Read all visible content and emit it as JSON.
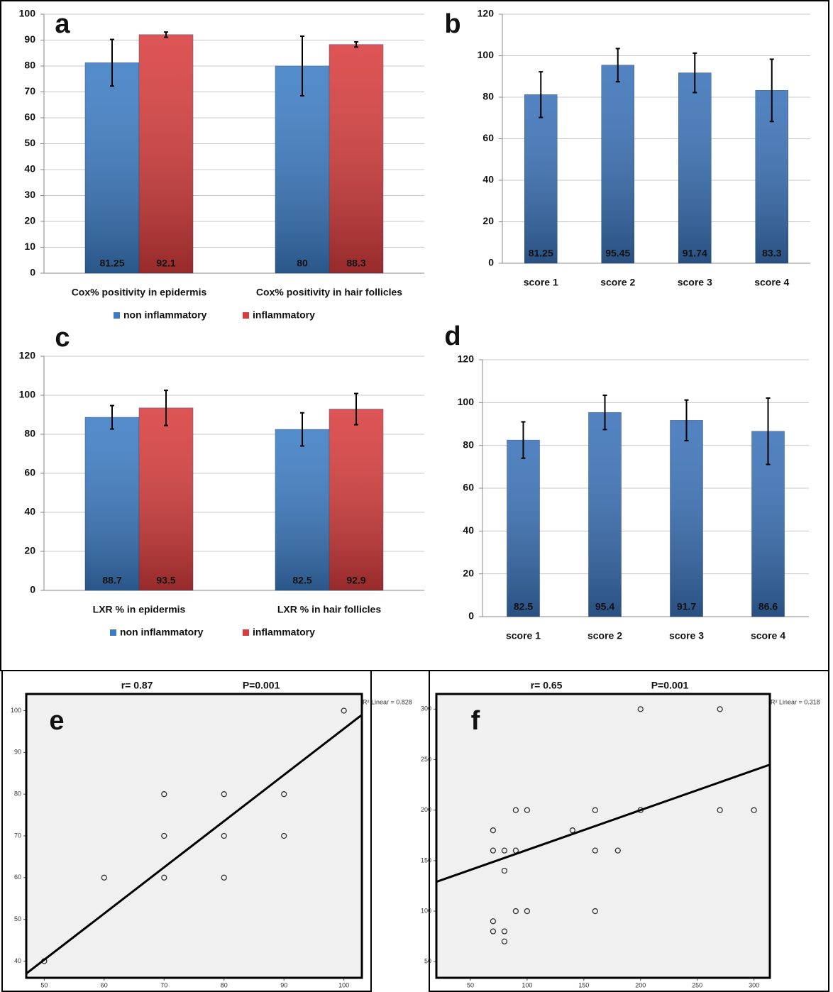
{
  "chart_data": [
    {
      "type": "bar",
      "label": "a",
      "categories": [
        "Cox% positivity in epidermis",
        "Cox% positivity in hair follicles"
      ],
      "series": [
        {
          "name": "non inflammatory",
          "color": "#3c7cc4",
          "values": [
            81.25,
            80
          ],
          "errors": [
            9,
            11.5
          ]
        },
        {
          "name": "inflammatory",
          "color": "#d83c3c",
          "values": [
            92.1,
            88.3
          ],
          "errors": [
            1,
            1
          ]
        }
      ],
      "ylim": [
        0,
        100
      ],
      "yticks": [
        0,
        10,
        20,
        30,
        40,
        50,
        60,
        70,
        80,
        90,
        100
      ],
      "grid": true
    },
    {
      "type": "bar",
      "label": "b",
      "categories": [
        "score 1",
        "score 2",
        "score 3",
        "score 4"
      ],
      "series": [
        {
          "name": null,
          "color": "#3a72b8",
          "values": [
            81.25,
            95.45,
            91.74,
            83.3
          ],
          "errors": [
            11,
            8,
            9.5,
            15
          ]
        }
      ],
      "ylim": [
        0,
        120
      ],
      "yticks": [
        0,
        20,
        40,
        60,
        80,
        100,
        120
      ],
      "grid": true
    },
    {
      "type": "bar",
      "label": "c",
      "categories": [
        "LXR % in epidermis",
        "LXR % in hair follicles"
      ],
      "series": [
        {
          "name": "non inflammatory",
          "color": "#3c7cc4",
          "values": [
            88.7,
            82.5
          ],
          "errors": [
            6,
            8.5
          ]
        },
        {
          "name": "inflammatory",
          "color": "#d83c3c",
          "values": [
            93.5,
            92.9
          ],
          "errors": [
            9,
            8
          ]
        }
      ],
      "ylim": [
        0,
        120
      ],
      "yticks": [
        0,
        20,
        40,
        60,
        80,
        100,
        120
      ],
      "grid": true
    },
    {
      "type": "bar",
      "label": "d",
      "categories": [
        "score 1",
        "score 2",
        "score 3",
        "score 4"
      ],
      "series": [
        {
          "name": null,
          "color": "#3a72b8",
          "values": [
            82.5,
            95.4,
            91.7,
            86.6
          ],
          "errors": [
            8.5,
            8,
            9.5,
            15.5
          ]
        }
      ],
      "ylim": [
        0,
        120
      ],
      "yticks": [
        0,
        20,
        40,
        60,
        80,
        100,
        120
      ],
      "grid": true
    },
    {
      "type": "scatter",
      "label": "e",
      "annotations": [
        "r= 0.87",
        "P=0.001",
        "R² Linear = 0.828"
      ],
      "x": [
        50,
        60,
        70,
        70,
        70,
        80,
        80,
        80,
        90,
        90,
        100
      ],
      "y": [
        40,
        60,
        80,
        70,
        60,
        80,
        70,
        60,
        80,
        70,
        100
      ],
      "fit": {
        "x": [
          47,
          103
        ],
        "y": [
          37,
          99
        ]
      },
      "xlim": [
        47,
        103
      ],
      "xticks": [
        50,
        60,
        70,
        80,
        90,
        100
      ],
      "ylim": [
        36,
        104
      ],
      "yticks": [
        40,
        50,
        60,
        70,
        80,
        90,
        100
      ]
    },
    {
      "type": "scatter",
      "label": "f",
      "annotations": [
        "r= 0.65",
        "P=0.001",
        "R² Linear = 0.318"
      ],
      "x": [
        70,
        70,
        70,
        70,
        80,
        80,
        80,
        80,
        90,
        90,
        90,
        100,
        100,
        140,
        160,
        160,
        160,
        180,
        200,
        200,
        270,
        270,
        300
      ],
      "y": [
        180,
        160,
        90,
        80,
        160,
        140,
        80,
        70,
        200,
        160,
        100,
        200,
        100,
        180,
        200,
        160,
        100,
        160,
        300,
        200,
        300,
        200,
        200
      ],
      "fit": {
        "x": [
          20,
          314
        ],
        "y": [
          129,
          245
        ]
      },
      "xlim": [
        20,
        314
      ],
      "xticks": [
        50,
        100,
        150,
        200,
        250,
        300
      ],
      "ylim": [
        34,
        315
      ],
      "yticks": [
        50,
        100,
        150,
        200,
        250,
        300
      ]
    }
  ]
}
